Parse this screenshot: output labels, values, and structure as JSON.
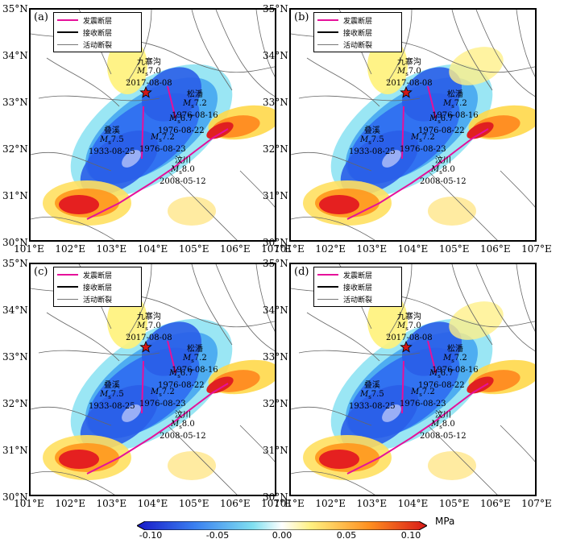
{
  "panels": [
    {
      "label": "(a)"
    },
    {
      "label": "(b)"
    },
    {
      "label": "(c)"
    },
    {
      "label": "(d)"
    }
  ],
  "legend": {
    "items": [
      {
        "text": "发震断层",
        "color": "#e6109a",
        "style": "solid"
      },
      {
        "text": "接收断层",
        "color": "#000000",
        "style": "solid"
      },
      {
        "text": "活动断裂",
        "color": "#777777",
        "style": "solid"
      }
    ]
  },
  "axes": {
    "lat_labels": [
      "35°N",
      "34°N",
      "33°N",
      "32°N",
      "31°N",
      "30°N"
    ],
    "lon_labels": [
      "101°E",
      "102°E",
      "103°E",
      "104°E",
      "105°E",
      "106°E",
      "107°E"
    ]
  },
  "annotations": {
    "jiuzhaigou": {
      "name": "九寨沟",
      "mag": "Ms7.0",
      "date": "2017-08-08"
    },
    "songpan1": {
      "name": "松潘",
      "mag": "Ms7.2",
      "date": "1976-08-16"
    },
    "songpan2": {
      "mag": "Ms6.7",
      "date": "1976-08-22"
    },
    "songpan3": {
      "mag": "Ms7.2",
      "date": "1976-08-23"
    },
    "diexi": {
      "name": "叠溪",
      "mag": "Ms7.5",
      "date": "1933-08-25"
    },
    "wenchuan": {
      "name": "汶川",
      "mag": "Ms8.0",
      "date": "2008-05-12"
    }
  },
  "colorbar": {
    "ticks": [
      "-0.10",
      "-0.05",
      "0.00",
      "0.05",
      "0.10"
    ],
    "unit": "MPa",
    "colors": [
      "#2020d0",
      "#3a7df0",
      "#6cc8f0",
      "#ffffff",
      "#ffe040",
      "#ff9020",
      "#e02020"
    ]
  }
}
